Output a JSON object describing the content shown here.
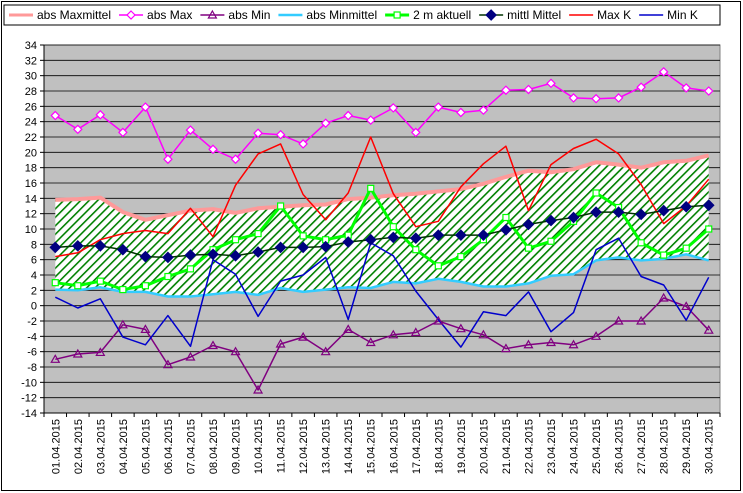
{
  "chart_data": {
    "type": "line",
    "categories": [
      "01.04.2015",
      "02.04.2015",
      "03.04.2015",
      "04.04.2015",
      "05.04.2015",
      "06.04.2015",
      "07.04.2015",
      "08.04.2015",
      "09.04.2015",
      "10.04.2015",
      "11.04.2015",
      "12.04.2015",
      "13.04.2015",
      "14.04.2015",
      "15.04.2015",
      "16.04.2015",
      "17.04.2015",
      "18.04.2015",
      "19.04.2015",
      "20.04.2015",
      "21.04.2015",
      "22.04.2015",
      "23.04.2015",
      "24.04.2015",
      "25.04.2015",
      "26.04.2015",
      "27.04.2015",
      "28.04.2015",
      "29.04.2015",
      "30.04.2015"
    ],
    "ylim": [
      -14,
      34
    ],
    "ytick_step": 2,
    "grid": true,
    "plot_background": "#c0c0c0",
    "band": {
      "upper_series": "abs Maxmittel",
      "lower_series": "abs Minmittel",
      "fill": "#008000",
      "pattern": "diagonal-hatch"
    },
    "series": [
      {
        "name": "abs Maxmittel",
        "color": "#ff9999",
        "width": 4,
        "marker": "none",
        "values": [
          13.8,
          13.9,
          14.1,
          12.2,
          11.2,
          11.8,
          12.4,
          12.6,
          12.1,
          12.7,
          12.9,
          13.1,
          13.2,
          13.9,
          14.1,
          14.4,
          14.6,
          14.9,
          15.2,
          15.9,
          16.8,
          17.6,
          17.4,
          17.8,
          18.7,
          18.4,
          18.0,
          18.7,
          18.9,
          19.6
        ]
      },
      {
        "name": "abs Max",
        "color": "#ff00ff",
        "width": 1.5,
        "marker": "diamond-open",
        "values": [
          24.8,
          23.0,
          24.9,
          22.6,
          25.9,
          19.1,
          22.9,
          20.4,
          19.1,
          22.5,
          22.3,
          21.1,
          23.8,
          24.8,
          24.2,
          25.8,
          22.6,
          25.9,
          25.2,
          25.5,
          28.1,
          28.2,
          29.0,
          27.1,
          27.0,
          27.1,
          28.5,
          30.5,
          28.4,
          28.0
        ]
      },
      {
        "name": "abs Min",
        "color": "#800080",
        "width": 1.5,
        "marker": "triangle-open",
        "values": [
          -7.0,
          -6.3,
          -6.1,
          -2.5,
          -3.1,
          -7.7,
          -6.7,
          -5.2,
          -6.0,
          -11.0,
          -5.0,
          -4.1,
          -6.0,
          -3.1,
          -4.8,
          -3.8,
          -3.5,
          -2.0,
          -3.0,
          -3.8,
          -5.6,
          -5.1,
          -4.8,
          -5.1,
          -4.0,
          -2.0,
          -2.0,
          1.0,
          -0.1,
          -3.2
        ]
      },
      {
        "name": "abs Minmittel",
        "color": "#33ccff",
        "width": 2.5,
        "marker": "none",
        "values": [
          2.1,
          2.0,
          2.4,
          1.8,
          1.8,
          1.2,
          1.2,
          1.5,
          1.8,
          1.4,
          2.3,
          1.8,
          2.1,
          2.4,
          2.3,
          3.1,
          2.9,
          3.5,
          3.1,
          2.5,
          2.5,
          2.9,
          3.9,
          4.1,
          5.9,
          6.3,
          5.9,
          6.1,
          6.7,
          5.9
        ]
      },
      {
        "name": "2 m aktuell",
        "color": "#00ff00",
        "width": 3,
        "marker": "square-open",
        "values": [
          3.0,
          2.6,
          3.2,
          2.1,
          2.6,
          3.8,
          4.8,
          7.3,
          8.6,
          9.4,
          13.0,
          9.1,
          8.6,
          9.2,
          15.3,
          10.3,
          7.3,
          5.2,
          6.4,
          8.6,
          11.5,
          7.5,
          8.4,
          11.0,
          14.7,
          12.8,
          8.2,
          6.6,
          7.5,
          10.0
        ]
      },
      {
        "name": "mittl Mittel",
        "color": "#003300",
        "width": 1.5,
        "marker": "diamond-filled",
        "marker_color": "#000080",
        "values": [
          7.6,
          7.8,
          7.8,
          7.3,
          6.4,
          6.3,
          6.6,
          6.7,
          6.5,
          7.0,
          7.6,
          7.6,
          7.7,
          8.3,
          8.6,
          8.9,
          8.8,
          9.2,
          9.2,
          9.2,
          9.9,
          10.6,
          11.1,
          11.5,
          12.2,
          12.2,
          11.9,
          12.4,
          12.9,
          13.1
        ]
      },
      {
        "name": "Max K",
        "color": "#ff0000",
        "width": 1.5,
        "marker": "none",
        "values": [
          6.4,
          6.9,
          8.6,
          9.4,
          9.8,
          9.4,
          12.7,
          9.0,
          15.7,
          19.8,
          21.1,
          14.5,
          11.2,
          14.7,
          22.0,
          14.6,
          10.3,
          11.0,
          15.5,
          18.5,
          20.8,
          12.4,
          18.4,
          20.5,
          21.7,
          19.8,
          15.8,
          10.7,
          13.0,
          16.5
        ]
      },
      {
        "name": "Min K",
        "color": "#0000cc",
        "width": 1.5,
        "marker": "none",
        "values": [
          1.1,
          -0.3,
          0.9,
          -4.1,
          -5.1,
          -1.3,
          -5.3,
          6.0,
          4.1,
          -1.4,
          3.2,
          4.0,
          6.3,
          -1.8,
          8.2,
          6.5,
          1.9,
          -1.8,
          -5.4,
          -0.8,
          -1.3,
          1.8,
          -3.4,
          -0.9,
          7.3,
          8.8,
          3.8,
          2.7,
          -1.9,
          3.7
        ]
      }
    ]
  }
}
